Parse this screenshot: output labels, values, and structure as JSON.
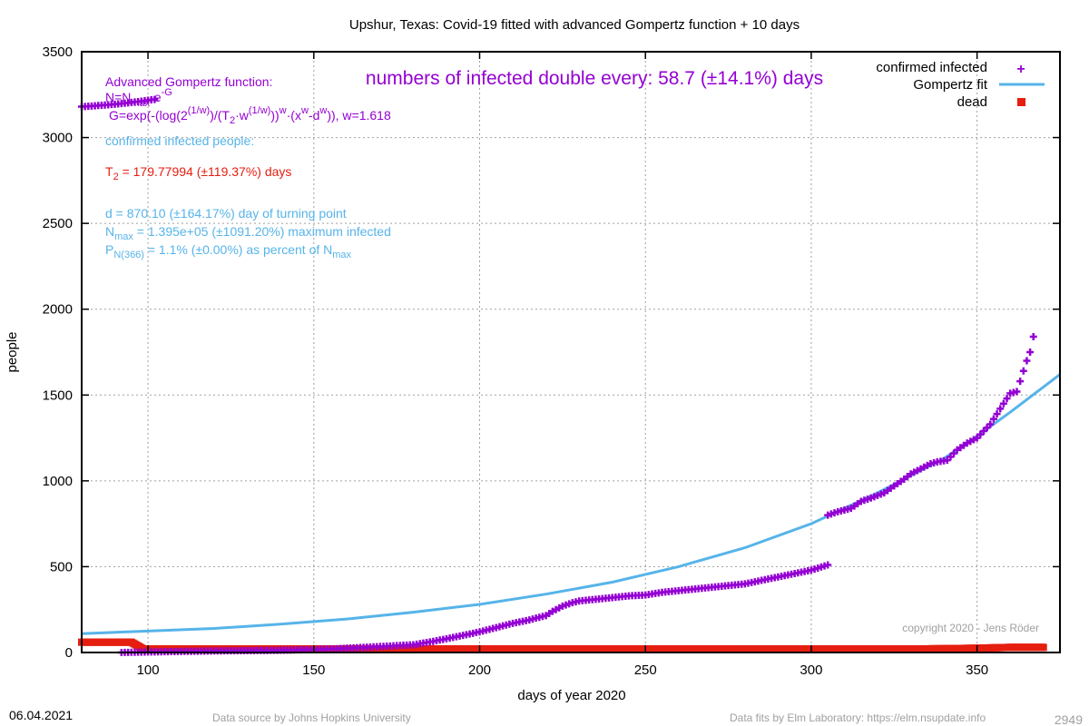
{
  "chart_data": {
    "type": "scatter",
    "title": "Upshur,  Texas: Covid-19 fitted with advanced Gompertz function + 10 days",
    "xlabel": "days of year 2020",
    "ylabel": "people",
    "xlim": [
      80,
      375
    ],
    "ylim": [
      0,
      3500
    ],
    "x_ticks": [
      100,
      150,
      200,
      250,
      300,
      350
    ],
    "y_ticks": [
      0,
      500,
      1000,
      1500,
      2000,
      2500,
      3000,
      3500
    ],
    "grid": true,
    "legend_position": "top-right",
    "legend": [
      {
        "label": "confirmed infected",
        "color": "#9400d3",
        "marker": "plus"
      },
      {
        "label": "Gompertz fit",
        "color": "#56b4e9",
        "marker": "line"
      },
      {
        "label": "dead",
        "color": "#e51e10",
        "marker": "square"
      }
    ],
    "series": [
      {
        "name": "confirmed infected",
        "color": "#9400d3",
        "points": [
          [
            80,
            3180
          ],
          [
            82,
            3182
          ],
          [
            84,
            3185
          ],
          [
            86,
            3188
          ],
          [
            88,
            3191
          ],
          [
            90,
            3194
          ],
          [
            92,
            3198
          ],
          [
            94,
            3202
          ],
          [
            96,
            3207
          ],
          [
            98,
            3212
          ],
          [
            100,
            3217
          ],
          [
            102,
            3222
          ],
          [
            92,
            0
          ],
          [
            100,
            3
          ],
          [
            110,
            6
          ],
          [
            120,
            9
          ],
          [
            130,
            11
          ],
          [
            140,
            13
          ],
          [
            150,
            17
          ],
          [
            155,
            20
          ],
          [
            160,
            25
          ],
          [
            165,
            30
          ],
          [
            170,
            35
          ],
          [
            175,
            40
          ],
          [
            180,
            45
          ],
          [
            183,
            55
          ],
          [
            186,
            65
          ],
          [
            190,
            80
          ],
          [
            195,
            100
          ],
          [
            200,
            120
          ],
          [
            205,
            145
          ],
          [
            210,
            170
          ],
          [
            215,
            190
          ],
          [
            220,
            215
          ],
          [
            222,
            240
          ],
          [
            225,
            270
          ],
          [
            228,
            290
          ],
          [
            230,
            300
          ],
          [
            235,
            310
          ],
          [
            240,
            320
          ],
          [
            245,
            330
          ],
          [
            250,
            335
          ],
          [
            255,
            350
          ],
          [
            260,
            360
          ],
          [
            265,
            370
          ],
          [
            270,
            380
          ],
          [
            275,
            390
          ],
          [
            280,
            400
          ],
          [
            285,
            420
          ],
          [
            290,
            440
          ],
          [
            295,
            460
          ],
          [
            300,
            480
          ],
          [
            305,
            510
          ],
          [
            305,
            800
          ],
          [
            308,
            820
          ],
          [
            312,
            840
          ],
          [
            315,
            880
          ],
          [
            318,
            900
          ],
          [
            322,
            930
          ],
          [
            325,
            970
          ],
          [
            328,
            1010
          ],
          [
            330,
            1040
          ],
          [
            333,
            1070
          ],
          [
            336,
            1100
          ],
          [
            338,
            1110
          ],
          [
            341,
            1120
          ],
          [
            344,
            1180
          ],
          [
            347,
            1220
          ],
          [
            350,
            1250
          ],
          [
            352,
            1290
          ],
          [
            354,
            1330
          ],
          [
            356,
            1390
          ],
          [
            358,
            1450
          ],
          [
            360,
            1510
          ],
          [
            362,
            1520
          ],
          [
            363,
            1580
          ],
          [
            364,
            1640
          ],
          [
            365,
            1700
          ],
          [
            366,
            1750
          ],
          [
            367,
            1840
          ]
        ]
      },
      {
        "name": "Gompertz fit",
        "color": "#56b4e9",
        "points": [
          [
            80,
            110
          ],
          [
            100,
            125
          ],
          [
            120,
            140
          ],
          [
            140,
            165
          ],
          [
            160,
            195
          ],
          [
            180,
            235
          ],
          [
            200,
            280
          ],
          [
            220,
            340
          ],
          [
            240,
            410
          ],
          [
            260,
            500
          ],
          [
            280,
            610
          ],
          [
            300,
            750
          ],
          [
            320,
            930
          ],
          [
            340,
            1130
          ],
          [
            350,
            1260
          ],
          [
            360,
            1400
          ],
          [
            375,
            1620
          ]
        ]
      },
      {
        "name": "dead",
        "color": "#e51e10",
        "points": [
          [
            80,
            60
          ],
          [
            95,
            60
          ],
          [
            100,
            5
          ],
          [
            200,
            8
          ],
          [
            230,
            10
          ],
          [
            250,
            15
          ],
          [
            300,
            18
          ],
          [
            330,
            20
          ],
          [
            350,
            25
          ],
          [
            360,
            30
          ],
          [
            370,
            30
          ]
        ]
      }
    ],
    "headline": "numbers of infected double every: 58.7 (±14.1%) days",
    "annotations": {
      "function_label": "Advanced Gompertz function:",
      "n_eq_a": "N=N",
      "n_eq_sub": "max",
      "n_eq_b": "·e",
      "n_eq_sup": "-G",
      "g_eq_a": "G=exp(-(log(2",
      "g_eq_sup1": "(1/w)",
      "g_eq_b": ")/(T",
      "g_eq_sub1": "2",
      "g_eq_c": "·w",
      "g_eq_sup2": "(1/w)",
      "g_eq_d": "))",
      "g_eq_sup3": "w",
      "g_eq_e": "·(x",
      "g_eq_sup4": "w",
      "g_eq_f": "-d",
      "g_eq_sup5": "w",
      "g_eq_g": ")), w=1.618",
      "confirmed_label": "confirmed infected people:",
      "t2_a": "T",
      "t2_sub": "2",
      "t2_b": " = 179.77994 (±119.37%) days",
      "d_line": "d = 870.10 (±164.17%) day of turning point",
      "nmax_a": "N",
      "nmax_sub": "max",
      "nmax_b": " = 1.395e+05 (±1091.20%) maximum infected",
      "p_a": "P",
      "p_sub": "N(366)",
      "p_b": " = 1.1% (±0.00%) as percent of N",
      "p_sub2": "max",
      "copyright": "copyright 2020 - Jens Röder"
    },
    "colors": {
      "purple": "#9400d3",
      "blue": "#56b4e9",
      "red": "#e51e10",
      "grid": "#a0a0a0",
      "copyright": "#a0a0a0"
    }
  },
  "footer": {
    "date": "06.04.2021",
    "source": "Data source by Johns Hopkins University",
    "fits": "Data fits by Elm Laboratory: https://elm.nsupdate.info",
    "number": "2949"
  }
}
